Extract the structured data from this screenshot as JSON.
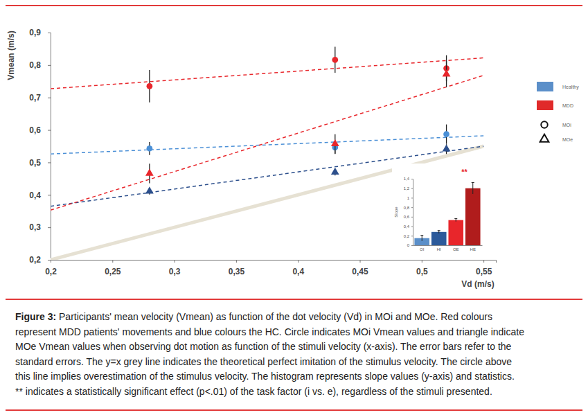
{
  "chart_data": [
    {
      "type": "scatter",
      "xlabel": "Vd (m/s)",
      "ylabel": "Vmean (m/s)",
      "xlim": [
        0.2,
        0.56
      ],
      "ylim": [
        0.2,
        0.9
      ],
      "xticks": [
        {
          "value": 0.2,
          "label": "0,2"
        },
        {
          "value": 0.25,
          "label": "0,25"
        },
        {
          "value": 0.3,
          "label": "0,3"
        },
        {
          "value": 0.35,
          "label": "0,35"
        },
        {
          "value": 0.4,
          "label": "0,4"
        },
        {
          "value": 0.45,
          "label": "0,45"
        },
        {
          "value": 0.5,
          "label": "0,5"
        },
        {
          "value": 0.55,
          "label": "0,55"
        }
      ],
      "yticks": [
        {
          "value": 0.2,
          "label": "0,2"
        },
        {
          "value": 0.3,
          "label": "0,3"
        },
        {
          "value": 0.4,
          "label": "0,4"
        },
        {
          "value": 0.5,
          "label": "0,5"
        },
        {
          "value": 0.6,
          "label": "0,6"
        },
        {
          "value": 0.7,
          "label": "0,7"
        },
        {
          "value": 0.8,
          "label": "0,8"
        },
        {
          "value": 0.9,
          "label": "0,9"
        }
      ],
      "x": [
        0.28,
        0.43,
        0.52
      ],
      "groups": [
        {
          "name": "Healthy",
          "color": "#5b8fc9",
          "series": [
            {
              "marker": "circle",
              "color": "#4a8fd6",
              "values": [
                0.543,
                0.546,
                0.587
              ],
              "errors": [
                0.02,
                0.02,
                0.03
              ],
              "trend": {
                "x": [
                  0.2,
                  0.55
                ],
                "values": [
                  0.526,
                  0.582
                ]
              }
            },
            {
              "marker": "triangle",
              "color": "#2c4f8c",
              "values": [
                0.411,
                0.47,
                0.541
              ],
              "errors": [
                0.01,
                0.01,
                0.015
              ],
              "trend": {
                "x": [
                  0.2,
                  0.55
                ],
                "values": [
                  0.365,
                  0.55
                ]
              }
            }
          ]
        },
        {
          "name": "MDD",
          "color": "#e02a2a",
          "series": [
            {
              "marker": "circle",
              "color": "#e8262b",
              "values": [
                0.735,
                0.816,
                0.79
              ],
              "errors": [
                0.05,
                0.04,
                0.04
              ],
              "trend": {
                "x": [
                  0.2,
                  0.55
                ],
                "values": [
                  0.727,
                  0.822
                ]
              }
            },
            {
              "marker": "triangle",
              "color": "#e8262b",
              "values": [
                0.466,
                0.557,
                0.772
              ],
              "errors": [
                0.03,
                0.03,
                0.04
              ],
              "trend": {
                "x": [
                  0.2,
                  0.55
                ],
                "values": [
                  0.353,
                  0.768
                ]
              }
            }
          ]
        }
      ],
      "markers": [
        {
          "name": "MOi",
          "marker": "circle"
        },
        {
          "name": "MOe",
          "marker": "triangle"
        }
      ],
      "reference_line": {
        "x": [
          0.2,
          0.55
        ],
        "values": [
          0.2,
          0.55
        ],
        "color": "#e6e1d3"
      }
    },
    {
      "type": "bar",
      "ylabel": "Slope",
      "categories": [
        "OI",
        "HI",
        "OE",
        "HE"
      ],
      "values": [
        0.15,
        0.28,
        0.53,
        1.2
      ],
      "errors": [
        0.06,
        0.03,
        0.03,
        0.12
      ],
      "colors": [
        "#5b8fc9",
        "#2c5a9a",
        "#e8262b",
        "#b01c1c"
      ],
      "ylim": [
        0,
        1.4
      ],
      "yticks": [
        0,
        {
          "value": 0.2,
          "label": "0,2"
        },
        {
          "value": 0.4,
          "label": "0,4"
        },
        {
          "value": 0.6,
          "label": "0,6"
        },
        {
          "value": 0.8,
          "label": "0,8"
        },
        1,
        {
          "value": 1.2,
          "label": "1,2"
        },
        {
          "value": 1.4,
          "label": "1,4"
        }
      ],
      "annotation": {
        "text": "**",
        "color": "#e8262b"
      }
    }
  ],
  "caption": {
    "label": "Figure 3:",
    "lines": [
      " Participants' mean velocity (Vmean) as function of the dot velocity (Vd) in MOi and MOe. Red colours",
      "represent MDD patients' movements and blue colours the HC. Circle indicates MOi Vmean values and triangle indicate",
      "MOe Vmean values when observing dot motion as function of the stimuli velocity (x-axis). The error bars refer to the",
      "standard errors. The y=x grey line indicates the theoretical perfect imitation of the stimulus velocity. The circle above",
      "this line implies overestimation of the stimulus velocity. The histogram represents slope values (y-axis) and statistics.",
      "** indicates a statistically significant effect (p<.01) of the task factor (i vs. e), regardless of the stimuli presented."
    ]
  }
}
